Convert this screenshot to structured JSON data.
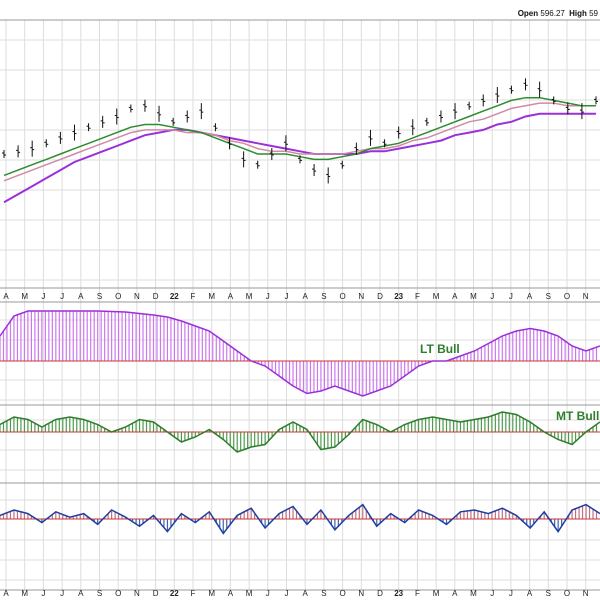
{
  "header": {
    "open_label": "Open",
    "open_value": "596.27",
    "high_label": "High",
    "high_value": "59"
  },
  "colors": {
    "price_bars": "#111111",
    "ma_short": "#2e8b2e",
    "ma_mid": "#d08aa8",
    "ma_long": "#9b30d9",
    "lt_fill": "#cc77ee",
    "lt_line": "#9b30d9",
    "mt_fill": "#4f9a4f",
    "mt_line": "#2e7d2e",
    "st_fill_pos": "#c07080",
    "st_fill_neg": "#4060b0",
    "st_line": "#1f3f9f",
    "zero_line": "#cc3333",
    "grid": "#dddddd",
    "label_green": "#2e7d2e"
  },
  "chart_data": [
    {
      "type": "line",
      "title": "",
      "x_tick_labels": [
        "A",
        "M",
        "J",
        "J",
        "A",
        "S",
        "O",
        "N",
        "D",
        "22",
        "F",
        "M",
        "A",
        "M",
        "J",
        "J",
        "A",
        "S",
        "O",
        "N",
        "D",
        "23",
        "F",
        "M",
        "A",
        "M",
        "J",
        "J",
        "A",
        "S",
        "O",
        "N"
      ],
      "bold_tick_labels": [
        "22",
        "23"
      ],
      "y": [
        10,
        11,
        12,
        14,
        16,
        18,
        20,
        22,
        24,
        27,
        28,
        25,
        22,
        24,
        26,
        20,
        14,
        8,
        6,
        10,
        14,
        8,
        4,
        2,
        6,
        12,
        16,
        14,
        18,
        20,
        22,
        24,
        26,
        28,
        30,
        32,
        34,
        36,
        34,
        30,
        27,
        26,
        30
      ],
      "series": [
        {
          "values": [
            2,
            4,
            6,
            8,
            10,
            12,
            14,
            16,
            18,
            20,
            21,
            21,
            20,
            19,
            18,
            16,
            14,
            12,
            10,
            10,
            10,
            9,
            8,
            8,
            9,
            10,
            12,
            13,
            14,
            16,
            18,
            20,
            22,
            24,
            26,
            28,
            30,
            31,
            31,
            30,
            29,
            28,
            28
          ]
        },
        {
          "values": [
            0,
            2,
            4,
            6,
            8,
            10,
            12,
            14,
            16,
            18,
            19,
            19,
            19,
            18,
            18,
            17,
            15,
            14,
            12,
            11,
            11,
            10,
            10,
            10,
            10,
            11,
            12,
            12,
            13,
            15,
            16,
            18,
            20,
            22,
            23,
            25,
            27,
            28,
            29,
            29,
            28,
            28,
            28
          ]
        },
        {
          "values": [
            -8,
            -5,
            -2,
            1,
            4,
            7,
            9,
            11,
            13,
            15,
            17,
            18,
            19,
            19,
            18,
            17,
            16,
            15,
            14,
            13,
            12,
            11,
            10,
            10,
            10,
            10,
            11,
            11,
            12,
            13,
            14,
            15,
            17,
            18,
            19,
            21,
            22,
            24,
            25,
            25,
            25,
            25,
            25
          ]
        }
      ]
    },
    {
      "type": "area",
      "annotation": "LT Bull",
      "values": [
        0.5,
        0.9,
        1,
        1,
        1,
        1,
        1,
        1,
        0.99,
        0.98,
        0.95,
        0.92,
        0.88,
        0.8,
        0.7,
        0.6,
        0.4,
        0.2,
        0,
        -0.1,
        -0.3,
        -0.5,
        -0.65,
        -0.6,
        -0.5,
        -0.6,
        -0.7,
        -0.6,
        -0.5,
        -0.3,
        -0.1,
        0,
        0,
        0.1,
        0.2,
        0.35,
        0.5,
        0.6,
        0.65,
        0.6,
        0.5,
        0.3,
        0.2,
        0.3
      ]
    },
    {
      "type": "area",
      "annotation": "MT Bull",
      "values": [
        0.3,
        0.6,
        0.5,
        0.2,
        0.5,
        0.6,
        0.5,
        0.3,
        0.0,
        0.2,
        0.5,
        0.4,
        0.0,
        -0.4,
        -0.2,
        0.1,
        -0.3,
        -0.8,
        -0.6,
        -0.5,
        0.1,
        0.4,
        0.1,
        -0.7,
        -0.6,
        -0.1,
        0.5,
        0.3,
        0.0,
        0.3,
        0.5,
        0.6,
        0.5,
        0.4,
        0.5,
        0.6,
        0.8,
        0.7,
        0.4,
        0.0,
        -0.3,
        -0.5,
        0.0,
        0.4
      ]
    },
    {
      "type": "area",
      "values": [
        0.2,
        0.5,
        0.3,
        -0.2,
        0.4,
        0.1,
        0.3,
        -0.3,
        0.5,
        0.1,
        -0.4,
        0.2,
        -0.7,
        0.3,
        -0.2,
        0.4,
        -0.8,
        0.2,
        0.6,
        -0.5,
        0.3,
        0.7,
        -0.3,
        0.5,
        -0.6,
        0.2,
        0.8,
        -0.4,
        0.3,
        -0.2,
        0.5,
        0.2,
        -0.3,
        0.4,
        0.5,
        0.3,
        0.6,
        0.2,
        -0.5,
        0.4,
        -0.7,
        0.5,
        0.8,
        0.3
      ]
    }
  ]
}
